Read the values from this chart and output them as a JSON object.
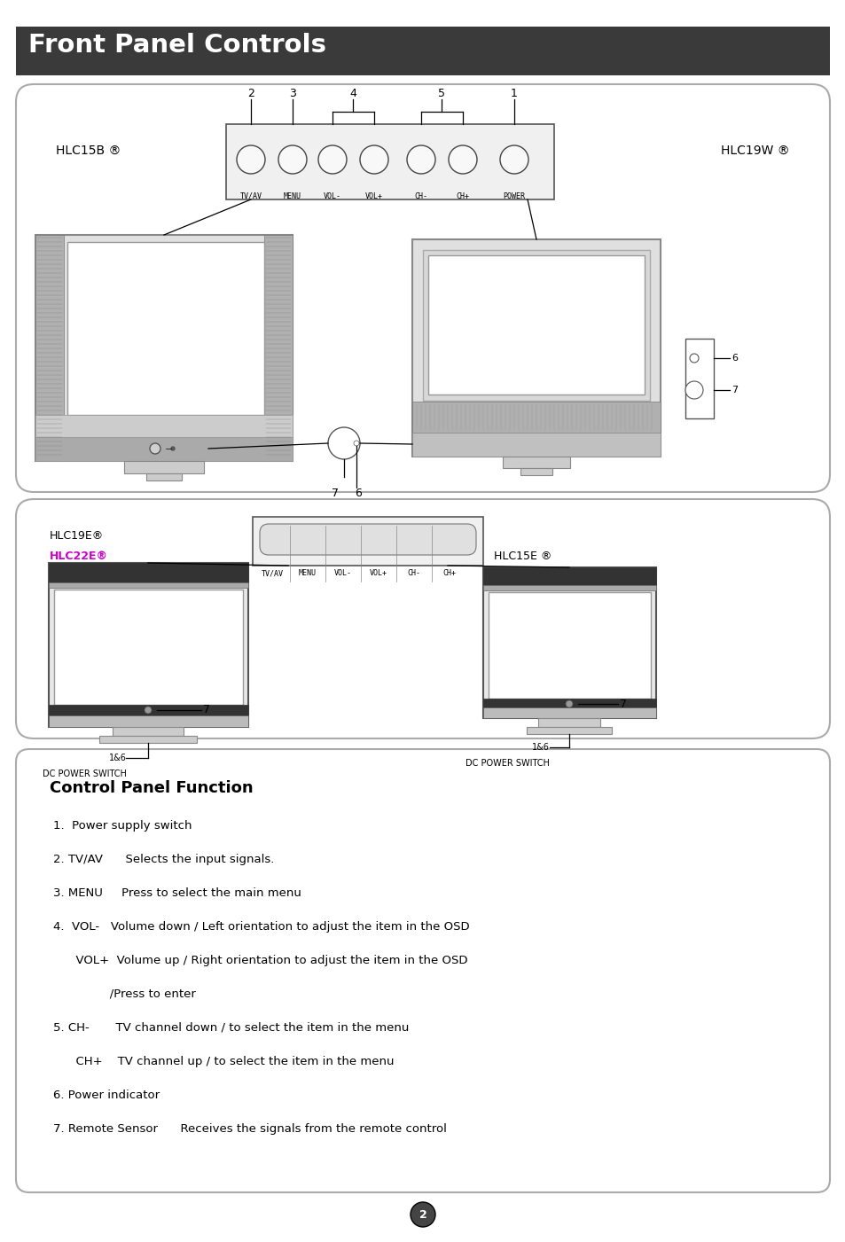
{
  "title": "Front Panel Controls",
  "title_bg": "#3a3a3a",
  "title_color": "#ffffff",
  "page_bg": "#ffffff",
  "box1_label_left": "HLC15B ®",
  "box1_label_right": "HLC19W ®",
  "box1_buttons": [
    "TV/AV",
    "MENU",
    "VOL-",
    "VOL+",
    "CH-",
    "CH+",
    "POWER"
  ],
  "box2_label_left1": "HLC19E®",
  "box2_label_left2": "HLC22E®",
  "box2_label_right": "HLC15E ®",
  "box2_label_left2_color": "#cc00cc",
  "box2_buttons": [
    "TV/AV",
    "MENU",
    "VOL-",
    "VOL+",
    "CH-",
    "CH+"
  ],
  "cpf_title": "Control Panel Function",
  "cpf_line1": "1.  Power supply switch",
  "cpf_line2": "2. TV/AV      Selects the input signals.",
  "cpf_line3": "3. MENU     Press to select the main menu",
  "cpf_line4a": "4.  VOL-   Volume down / Left orientation to adjust the item in the OSD",
  "cpf_line4b": "      VOL+  Volume up / Right orientation to adjust the item in the OSD",
  "cpf_line4c": "               /Press to enter",
  "cpf_line5a": "5. CH-       TV channel down / to select the item in the menu",
  "cpf_line5b": "      CH+    TV channel up / to select the item in the menu",
  "cpf_line6": "6. Power indicator",
  "cpf_line7": "7. Remote Sensor      Receives the signals from the remote control",
  "page_number": "2"
}
